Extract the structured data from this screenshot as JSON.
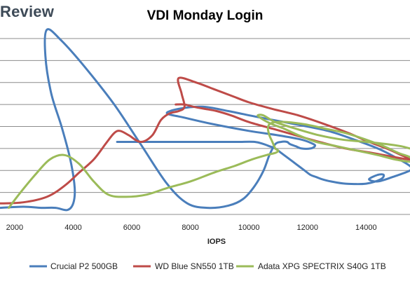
{
  "brand": {
    "text": "Review"
  },
  "chart_data": {
    "type": "line",
    "title": "VDI Monday Login",
    "xlabel": "IOPS",
    "ylabel": "",
    "xlim": [
      1500,
      15500
    ],
    "ylim": [
      0,
      8
    ],
    "xticks": [
      2000,
      4000,
      6000,
      8000,
      10000,
      12000,
      14000
    ],
    "grid": true,
    "legend_position": "bottom",
    "series": [
      {
        "name": "Crucial P2 500GB",
        "color": "#4a7ebb",
        "x": [
          1500,
          2300,
          2900,
          3400,
          3800,
          4000,
          4050,
          3900,
          3600,
          3250,
          3050,
          3100,
          3600,
          4400,
          5400,
          6300,
          7200,
          7900,
          8600,
          9300,
          9800,
          10200,
          10500,
          10700,
          10900,
          11100,
          11300,
          11400,
          11600,
          11800,
          12100,
          12250,
          12200,
          11800,
          11000,
          10000,
          8800,
          7800,
          7200,
          7600,
          8400,
          9300,
          10400,
          11600,
          12700,
          13600,
          14400,
          15000,
          15500,
          15500,
          14900,
          14400,
          14100,
          14400,
          14600,
          14500,
          14000,
          13300,
          12800,
          12500,
          12300,
          12100,
          11900,
          11700,
          11400,
          11100,
          10900,
          10700,
          10500,
          10200,
          9600,
          8800,
          8000,
          7300,
          6800,
          6400,
          6000,
          5700,
          5500
        ],
        "y": [
          0.3,
          0.35,
          0.3,
          0.3,
          0.2,
          0.5,
          1.2,
          2.5,
          4.0,
          5.5,
          7.2,
          8.4,
          7.9,
          6.7,
          5.0,
          3.2,
          1.4,
          0.5,
          0.3,
          0.4,
          0.7,
          1.3,
          2.0,
          2.7,
          3.2,
          3.3,
          3.3,
          3.2,
          3.1,
          3.0,
          3.0,
          3.1,
          3.2,
          3.4,
          3.6,
          3.8,
          4.1,
          4.4,
          4.6,
          4.8,
          4.9,
          4.7,
          4.4,
          4.1,
          3.8,
          3.4,
          3.0,
          2.6,
          2.2,
          2.0,
          1.7,
          1.5,
          1.6,
          1.8,
          1.8,
          1.6,
          1.4,
          1.4,
          1.5,
          1.6,
          1.7,
          1.8,
          2.0,
          2.2,
          2.5,
          2.8,
          3.0,
          3.1,
          3.2,
          3.3,
          3.3,
          3.3,
          3.3,
          3.3,
          3.3,
          3.3,
          3.3,
          3.3,
          3.3
        ]
      },
      {
        "name": "WD Blue SN550 1TB",
        "color": "#be4b48",
        "x": [
          1500,
          2300,
          3100,
          3700,
          4200,
          4700,
          5100,
          5400,
          5600,
          5900,
          6300,
          6700,
          7000,
          7300,
          7600,
          7800,
          7700,
          7600,
          8200,
          8800,
          9400,
          10000,
          10800,
          11700,
          12600,
          13400,
          14100,
          14700,
          15200,
          15500,
          15000,
          14200,
          13300,
          12400,
          11600,
          10800,
          10000,
          9400,
          8900,
          8500,
          8100,
          7800,
          7500
        ],
        "y": [
          0.5,
          0.55,
          0.8,
          1.3,
          1.9,
          2.5,
          3.2,
          3.7,
          3.8,
          3.6,
          3.3,
          3.6,
          4.3,
          4.6,
          4.7,
          4.9,
          5.5,
          6.2,
          6.0,
          5.7,
          5.4,
          5.1,
          4.8,
          4.5,
          4.1,
          3.7,
          3.3,
          3.0,
          2.7,
          2.5,
          2.6,
          2.8,
          3.0,
          3.3,
          3.6,
          3.9,
          4.2,
          4.5,
          4.7,
          4.8,
          4.9,
          5.0,
          5.0
        ]
      },
      {
        "name": "Adata XPG SPECTRIX S40G 1TB",
        "color": "#9bbb59",
        "x": [
          1800,
          2200,
          2700,
          3200,
          3700,
          4200,
          4700,
          5200,
          5800,
          6500,
          7200,
          8000,
          8800,
          9500,
          10100,
          10600,
          10900,
          11000,
          10900,
          10800,
          10700,
          10650,
          10700,
          10900,
          11300,
          11900,
          12600,
          13300,
          14000,
          14600,
          15100,
          15500,
          15500,
          15000,
          14400,
          13700,
          13000,
          12300,
          11700,
          11200,
          10800,
          10500,
          10300,
          10500,
          10900,
          11600,
          12400,
          13200,
          14000,
          14700,
          15200,
          15500
        ],
        "y": [
          0.3,
          1.0,
          1.8,
          2.5,
          2.7,
          2.3,
          1.5,
          0.9,
          0.8,
          0.9,
          1.2,
          1.5,
          1.9,
          2.2,
          2.5,
          2.7,
          2.8,
          2.9,
          3.0,
          3.3,
          3.6,
          3.9,
          4.1,
          4.2,
          4.2,
          4.1,
          3.9,
          3.7,
          3.4,
          3.1,
          2.8,
          2.6,
          2.4,
          2.5,
          2.7,
          2.9,
          3.1,
          3.3,
          3.6,
          3.9,
          4.1,
          4.3,
          4.5,
          4.5,
          4.2,
          3.9,
          3.6,
          3.4,
          3.3,
          3.2,
          3.1,
          3.0
        ]
      }
    ]
  }
}
